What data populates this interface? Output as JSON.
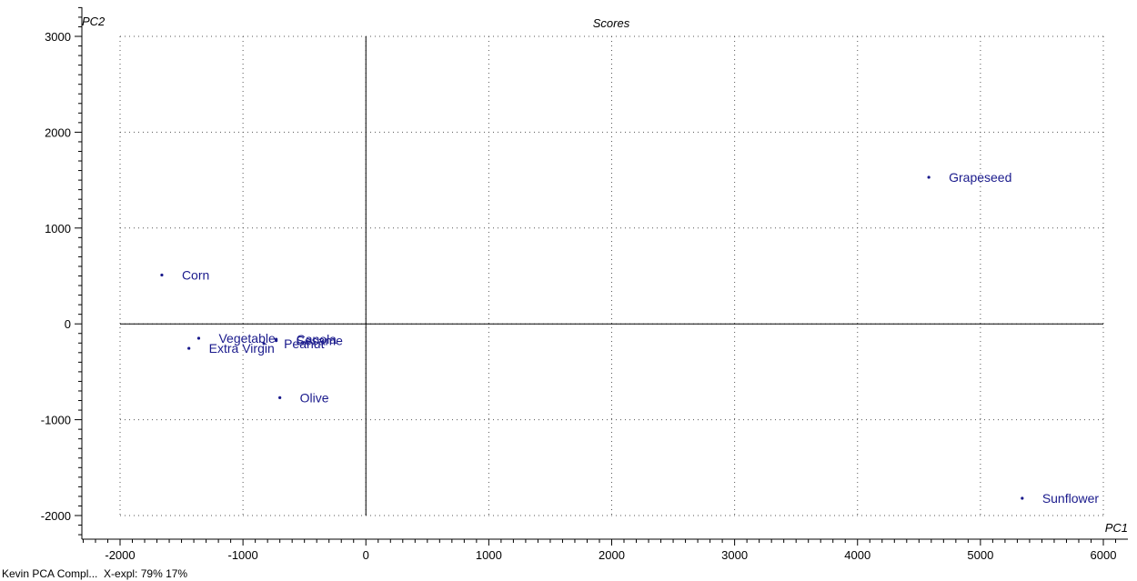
{
  "chart_data": {
    "type": "scatter",
    "title": "Scores",
    "xlabel": "PC1",
    "ylabel": "PC2",
    "xlim": [
      -2000,
      6000
    ],
    "ylim": [
      -2000,
      3000
    ],
    "xticks": [
      -2000,
      -1000,
      0,
      1000,
      2000,
      3000,
      4000,
      5000,
      6000
    ],
    "yticks": [
      -2000,
      -1000,
      0,
      1000,
      2000,
      3000
    ],
    "xtick_labels": [
      "-2000",
      "-1000",
      "0",
      "1000",
      "2000",
      "3000",
      "4000",
      "5000",
      "6000"
    ],
    "ytick_labels": [
      "-2000",
      "-1000",
      "0",
      "1000",
      "2000",
      "3000"
    ],
    "grid": true,
    "points": [
      {
        "label": "Grapeseed",
        "x": 4580,
        "y": 1530
      },
      {
        "label": "Corn",
        "x": -1660,
        "y": 510
      },
      {
        "label": "Vegetable",
        "x": -1360,
        "y": -150
      },
      {
        "label": "Canola",
        "x": -730,
        "y": -160
      },
      {
        "label": "Sesame",
        "x": -730,
        "y": -175
      },
      {
        "label": "Peanut",
        "x": -830,
        "y": -205
      },
      {
        "label": "Extra Virgin",
        "x": -1440,
        "y": -255
      },
      {
        "label": "Olive",
        "x": -700,
        "y": -770
      },
      {
        "label": "Sunflower",
        "x": 5340,
        "y": -1820
      }
    ],
    "colors": {
      "points": "#1a1a8c",
      "axes": "#000000",
      "grid": "#555555"
    }
  },
  "footer": "Kevin PCA Compl...  X-expl: 79% 17%"
}
